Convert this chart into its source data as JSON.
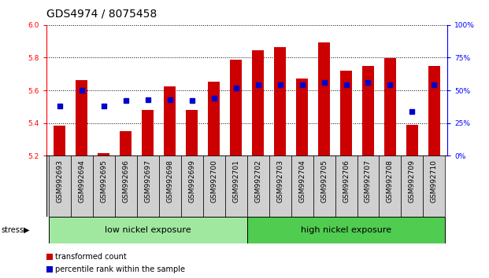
{
  "title": "GDS4974 / 8075458",
  "samples": [
    "GSM992693",
    "GSM992694",
    "GSM992695",
    "GSM992696",
    "GSM992697",
    "GSM992698",
    "GSM992699",
    "GSM992700",
    "GSM992701",
    "GSM992702",
    "GSM992703",
    "GSM992704",
    "GSM992705",
    "GSM992706",
    "GSM992707",
    "GSM992708",
    "GSM992709",
    "GSM992710"
  ],
  "bar_heights": [
    5.385,
    5.665,
    5.215,
    5.35,
    5.48,
    5.625,
    5.48,
    5.655,
    5.79,
    5.845,
    5.865,
    5.67,
    5.895,
    5.72,
    5.75,
    5.795,
    5.39,
    5.75
  ],
  "percentile_values": [
    38,
    50,
    38,
    42,
    43,
    43,
    42,
    44,
    52,
    54,
    54,
    54,
    56,
    54,
    56,
    54,
    34,
    54
  ],
  "bar_color": "#cc0000",
  "blue_color": "#0000cc",
  "ymin": 5.2,
  "ymax": 6.0,
  "yticks": [
    5.2,
    5.4,
    5.6,
    5.8,
    6.0
  ],
  "right_yticks": [
    0,
    25,
    50,
    75,
    100
  ],
  "right_yticklabels": [
    "0%",
    "25%",
    "50%",
    "75%",
    "100%"
  ],
  "group1_label": "low nickel exposure",
  "group2_label": "high nickel exposure",
  "group1_count": 9,
  "group2_count": 9,
  "stress_label": "stress",
  "legend_bar_label": "transformed count",
  "legend_blue_label": "percentile rank within the sample",
  "tick_area_color": "#d0d0d0",
  "group1_bg": "#a0e8a0",
  "group2_bg": "#50cc50",
  "bar_width": 0.55,
  "title_fontsize": 10,
  "tick_fontsize": 6.5,
  "label_fontsize": 8
}
